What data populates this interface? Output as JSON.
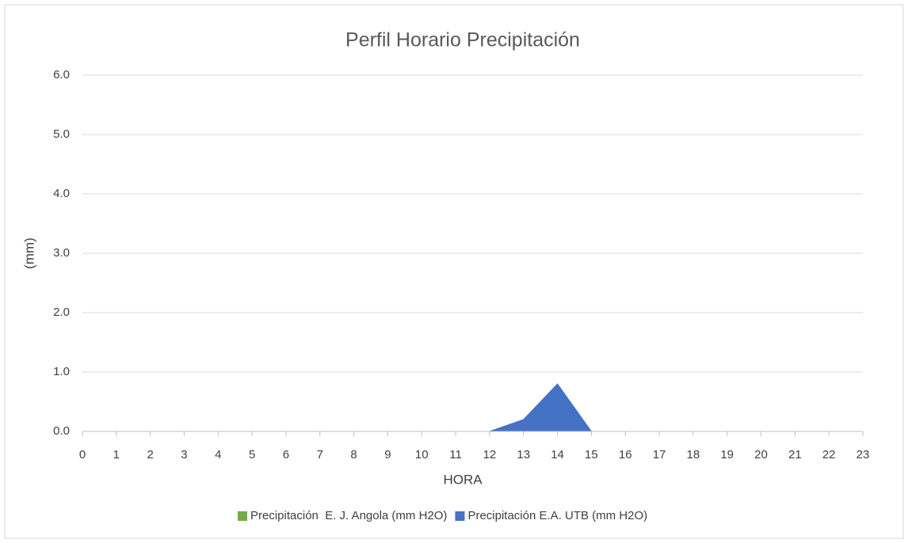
{
  "chart_data": {
    "type": "area",
    "title": "Perfil Horario Precipitación",
    "x_label": "HORA",
    "y_label": "(mm)",
    "x": [
      0,
      1,
      2,
      3,
      4,
      5,
      6,
      7,
      8,
      9,
      10,
      11,
      12,
      13,
      14,
      15,
      16,
      17,
      18,
      19,
      20,
      21,
      22,
      23
    ],
    "series": [
      {
        "name": "Precipitación  E. J. Angola (mm H2O)",
        "color": "#70ad47",
        "values": [
          0,
          0,
          0,
          0,
          0,
          0,
          0,
          0,
          0,
          0,
          0,
          0,
          0,
          0,
          0,
          0,
          0,
          0,
          0,
          0,
          0,
          0,
          0,
          0
        ]
      },
      {
        "name": "Precipitación E.A. UTB (mm H2O)",
        "color": "#4472c4",
        "values": [
          0,
          0,
          0,
          0,
          0,
          0,
          0,
          0,
          0,
          0,
          0,
          0,
          0,
          0.2,
          0.8,
          0,
          0,
          0,
          0,
          0,
          0,
          0,
          0,
          0
        ]
      }
    ],
    "xlim": [
      0,
      23
    ],
    "xticks": [
      0,
      1,
      2,
      3,
      4,
      5,
      6,
      7,
      8,
      9,
      10,
      11,
      12,
      13,
      14,
      15,
      16,
      17,
      18,
      19,
      20,
      21,
      22,
      23
    ],
    "ylim": [
      0,
      6
    ],
    "yticks": [
      {
        "value": 0,
        "label": "0.0"
      },
      {
        "value": 1,
        "label": "1.0"
      },
      {
        "value": 2,
        "label": "2.0"
      },
      {
        "value": 3,
        "label": "3.0"
      },
      {
        "value": 4,
        "label": "4.0"
      },
      {
        "value": 5,
        "label": "5.0"
      },
      {
        "value": 6,
        "label": "6.0"
      }
    ],
    "grid": true,
    "legend": "bottom"
  }
}
